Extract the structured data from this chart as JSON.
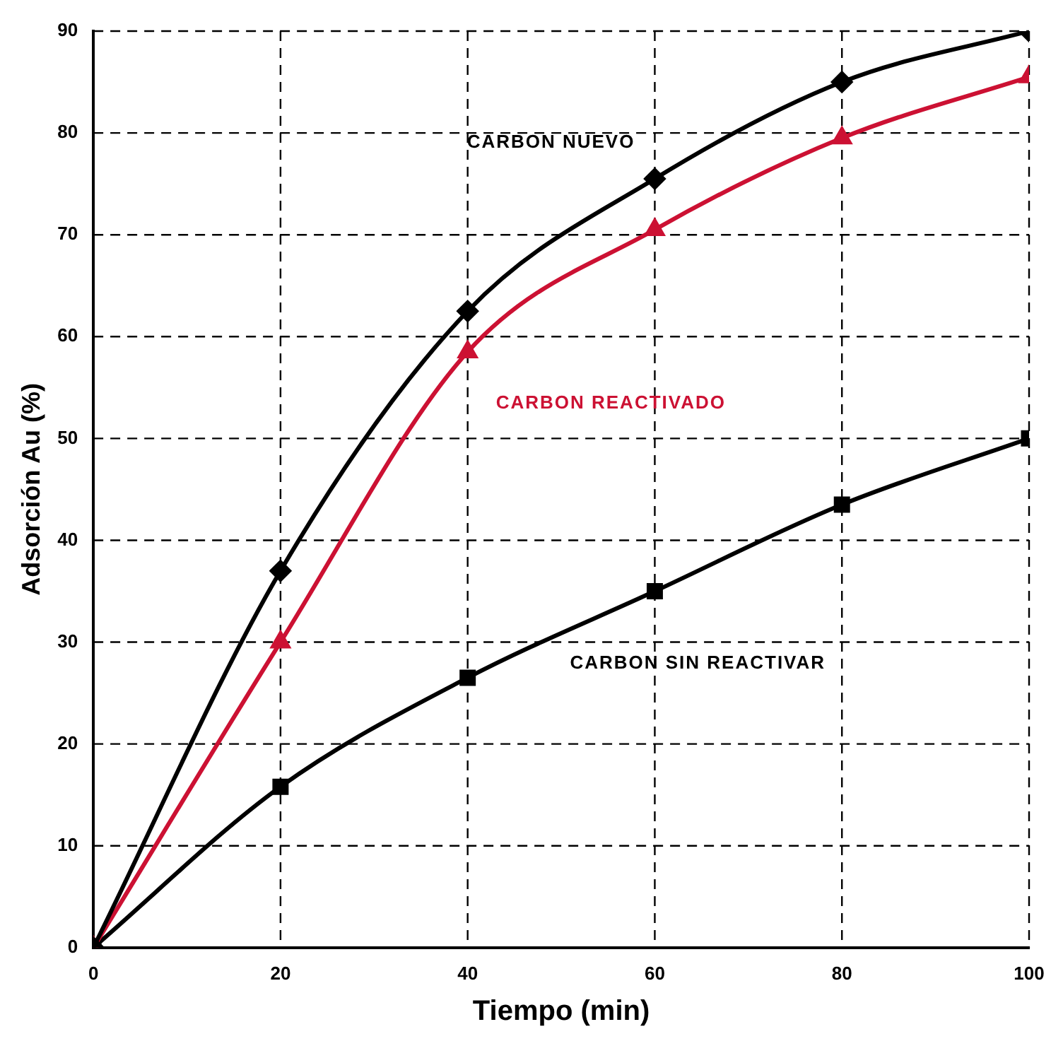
{
  "chart_data": {
    "type": "line",
    "xlabel": "Tiempo (min)",
    "ylabel": "Adsorción Au (%)",
    "x": [
      0,
      20,
      40,
      60,
      80,
      100
    ],
    "xlim": [
      0,
      100
    ],
    "xticks": [
      0,
      20,
      40,
      60,
      80,
      100
    ],
    "ylim": [
      0,
      90
    ],
    "yticks": [
      0,
      10,
      20,
      30,
      40,
      50,
      60,
      70,
      80,
      90
    ],
    "grid": true,
    "legend": false,
    "line_style": "solid",
    "series": [
      {
        "name": "CARBON NUEVO",
        "color": "#000000",
        "marker": "diamond",
        "values": [
          0,
          37,
          62.5,
          75.5,
          85,
          90
        ]
      },
      {
        "name": "CARBON REACTIVADO",
        "color": "#cc1133",
        "marker": "triangle",
        "values": [
          0,
          30,
          58.5,
          70.5,
          79.5,
          85.5
        ]
      },
      {
        "name": "CARBON SIN REACTIVAR",
        "color": "#000000",
        "marker": "square",
        "values": [
          0,
          15.8,
          26.5,
          35,
          43.5,
          50
        ]
      }
    ]
  }
}
